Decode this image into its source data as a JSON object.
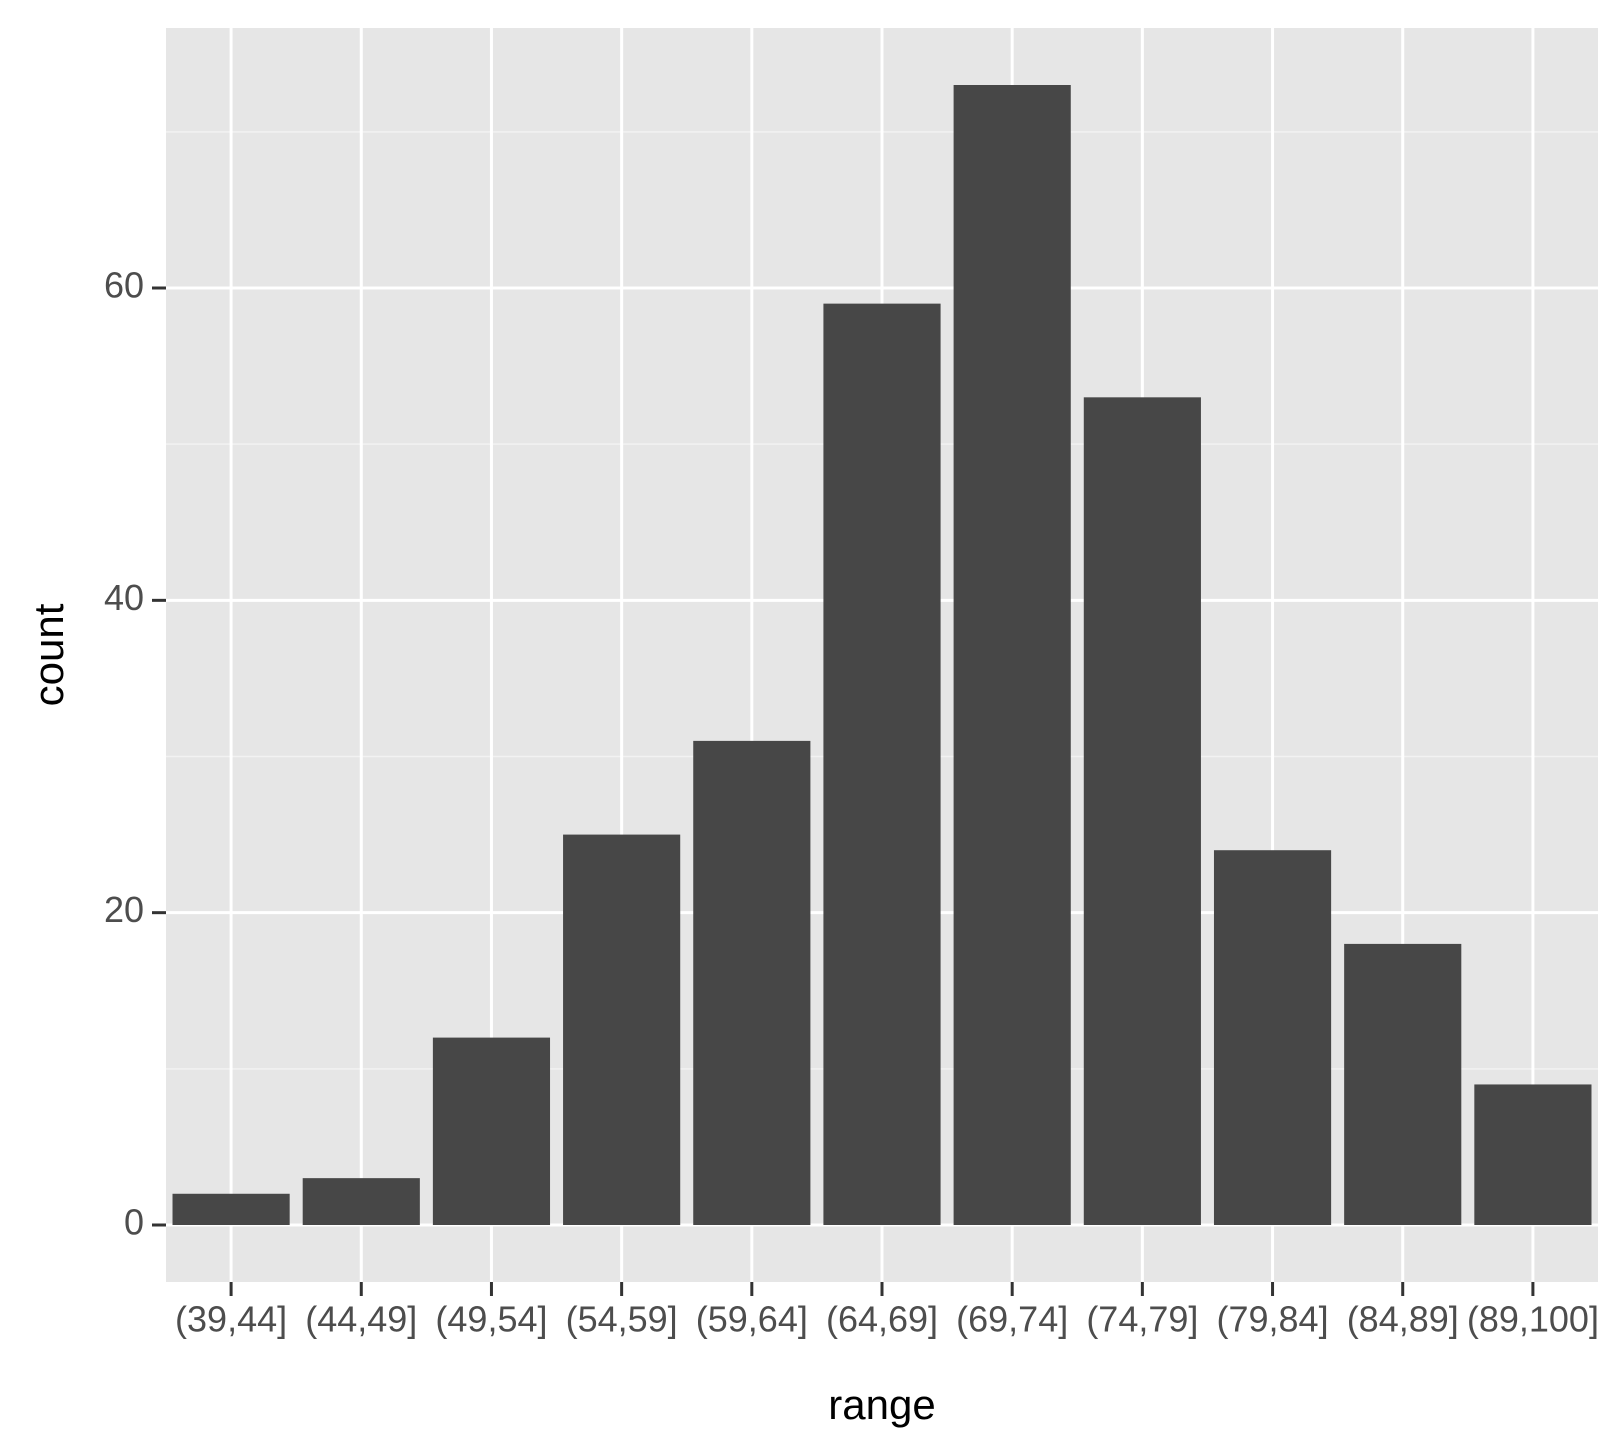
{
  "chart_data": {
    "type": "bar",
    "x_label": "range",
    "y_label": "count",
    "categories": [
      "(39,44]",
      "(44,49]",
      "(49,54]",
      "(54,59]",
      "(59,64]",
      "(64,69]",
      "(69,74]",
      "(74,79]",
      "(79,84]",
      "(84,89]",
      "(89,100]"
    ],
    "values": [
      2,
      3,
      12,
      25,
      31,
      59,
      73,
      53,
      24,
      18,
      9
    ],
    "color": "#474747",
    "ylim": [
      -3.65,
      76.65
    ],
    "yticks": [
      0,
      20,
      40,
      60
    ],
    "grid": true,
    "minor_grid": true
  }
}
